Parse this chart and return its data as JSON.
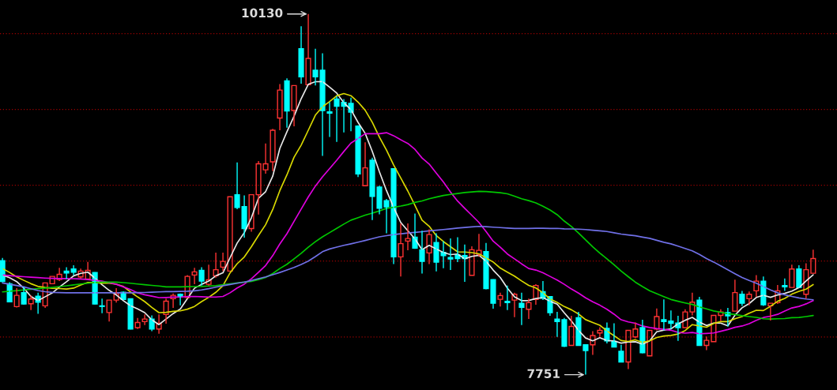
{
  "chart_data": {
    "type": "candlestick",
    "categories": [
      null,
      null,
      null,
      null,
      null,
      null,
      null,
      null,
      null,
      null,
      null,
      null,
      null,
      null,
      null,
      null,
      null,
      null,
      null,
      null,
      null,
      null,
      null,
      null,
      null,
      null,
      null,
      null,
      null,
      null,
      null,
      null,
      null,
      null,
      null,
      null,
      null,
      null,
      null,
      null,
      null,
      null,
      null,
      null,
      null,
      null,
      null,
      null,
      null,
      null,
      null,
      null,
      null,
      null,
      null,
      null,
      null,
      null,
      null,
      null,
      null,
      null,
      null,
      null,
      null,
      null,
      null,
      null,
      null,
      null,
      null,
      null,
      null,
      null,
      null,
      null,
      null,
      null,
      null,
      null,
      null,
      null,
      null,
      null,
      null,
      null,
      null,
      null,
      null,
      null,
      null,
      null,
      null,
      null,
      null,
      null,
      null,
      null,
      null,
      null,
      null,
      null,
      null,
      null,
      null,
      null,
      null,
      null,
      null,
      null,
      null,
      null,
      null,
      null,
      null
    ],
    "ohlc": [
      [
        8503,
        8521,
        8360,
        8365
      ],
      [
        8351,
        8361,
        8228,
        8231
      ],
      [
        8200,
        8321,
        8194,
        8274
      ],
      [
        8292,
        8330,
        8214,
        8217
      ],
      [
        8219,
        8274,
        8177,
        8250
      ],
      [
        8269,
        8292,
        8153,
        8229
      ],
      [
        8205,
        8356,
        8191,
        8356
      ],
      [
        8351,
        8399,
        8351,
        8399
      ],
      [
        8378,
        8455,
        8368,
        8413
      ],
      [
        8434,
        8460,
        8382,
        8422
      ],
      [
        8448,
        8472,
        8408,
        8427
      ],
      [
        8396,
        8451,
        8385,
        8434
      ],
      [
        8382,
        8495,
        8382,
        8439
      ],
      [
        8425,
        8427,
        8215,
        8217
      ],
      [
        8205,
        8252,
        8156,
        8201
      ],
      [
        8161,
        8243,
        8101,
        8243
      ],
      [
        8243,
        8321,
        8226,
        8286
      ],
      [
        8295,
        8299,
        8243,
        8247
      ],
      [
        8252,
        8254,
        8050,
        8052
      ],
      [
        8061,
        8125,
        8052,
        8095
      ],
      [
        8101,
        8148,
        8078,
        8118
      ],
      [
        8118,
        8142,
        8038,
        8052
      ],
      [
        8052,
        8148,
        8021,
        8090
      ],
      [
        8148,
        8252,
        8087,
        8236
      ],
      [
        8252,
        8286,
        8191,
        8274
      ],
      [
        8281,
        8286,
        8208,
        8267
      ],
      [
        8260,
        8408,
        8252,
        8399
      ],
      [
        8408,
        8455,
        8347,
        8429
      ],
      [
        8439,
        8460,
        8339,
        8368
      ],
      [
        8347,
        8477,
        8339,
        8377
      ],
      [
        8403,
        8556,
        8391,
        8443
      ],
      [
        8460,
        8556,
        8434,
        8498
      ],
      [
        8434,
        8924,
        8434,
        8924
      ],
      [
        8938,
        9151,
        8842,
        8854
      ],
      [
        8859,
        8934,
        8655,
        8715
      ],
      [
        8715,
        8938,
        8694,
        8938
      ],
      [
        8938,
        9160,
        8807,
        9142
      ],
      [
        9102,
        9276,
        9076,
        9142
      ],
      [
        9155,
        9372,
        9094,
        9363
      ],
      [
        9444,
        9667,
        9363,
        9628
      ],
      [
        9689,
        9705,
        9380,
        9490
      ],
      [
        9493,
        9658,
        9389,
        9658
      ],
      [
        9901,
        10049,
        9670,
        9715
      ],
      [
        9663,
        10130,
        9663,
        9837
      ],
      [
        9759,
        9901,
        9658,
        9715
      ],
      [
        9759,
        9870,
        9194,
        9493
      ],
      [
        9484,
        9549,
        9319,
        9476
      ],
      [
        9569,
        9587,
        9286,
        9521
      ],
      [
        9547,
        9569,
        9349,
        9521
      ],
      [
        9540,
        9578,
        9356,
        9483
      ],
      [
        9391,
        9396,
        9054,
        9075
      ],
      [
        8997,
        9283,
        8997,
        9115
      ],
      [
        9165,
        9182,
        8771,
        8927
      ],
      [
        8988,
        8997,
        8809,
        8849
      ],
      [
        8898,
        8910,
        8684,
        8858
      ],
      [
        9109,
        9113,
        8481,
        8528
      ],
      [
        8528,
        8748,
        8398,
        8615
      ],
      [
        8632,
        8748,
        8571,
        8649
      ],
      [
        8658,
        8814,
        8580,
        8585
      ],
      [
        8575,
        8701,
        8418,
        8498
      ],
      [
        8554,
        8710,
        8481,
        8675
      ],
      [
        8623,
        8684,
        8432,
        8493
      ],
      [
        8557,
        8632,
        8453,
        8536
      ],
      [
        8523,
        8649,
        8441,
        8514
      ],
      [
        8540,
        8658,
        8493,
        8516
      ],
      [
        8536,
        8609,
        8363,
        8516
      ],
      [
        8406,
        8597,
        8406,
        8575
      ],
      [
        8545,
        8679,
        8528,
        8571
      ],
      [
        8563,
        8620,
        8314,
        8319
      ],
      [
        8378,
        8380,
        8186,
        8222
      ],
      [
        8248,
        8292,
        8200,
        8273
      ],
      [
        8234,
        8339,
        8177,
        8226
      ],
      [
        8243,
        8292,
        8130,
        8281
      ],
      [
        8221,
        8292,
        8078,
        8195
      ],
      [
        8182,
        8252,
        8118,
        8226
      ],
      [
        8247,
        8347,
        8212,
        8339
      ],
      [
        8299,
        8368,
        8243,
        8255
      ],
      [
        8266,
        8269,
        8139,
        8160
      ],
      [
        8118,
        8165,
        8000,
        8101
      ],
      [
        8113,
        8125,
        7934,
        7939
      ],
      [
        7944,
        8139,
        7944,
        8069
      ],
      [
        8127,
        8165,
        7941,
        7944
      ],
      [
        7948,
        7951,
        7751,
        7910
      ],
      [
        7948,
        8038,
        7882,
        8009
      ],
      [
        8026,
        8064,
        8000,
        8043
      ],
      [
        8056,
        8095,
        7957,
        7974
      ],
      [
        7970,
        8090,
        7931,
        7934
      ],
      [
        7905,
        7948,
        7832,
        7835
      ],
      [
        7835,
        8043,
        7788,
        8043
      ],
      [
        8000,
        8095,
        7991,
        8052
      ],
      [
        8061,
        8113,
        7892,
        7896
      ],
      [
        7875,
        8043,
        7875,
        8043
      ],
      [
        8052,
        8188,
        8043,
        8134
      ],
      [
        8113,
        8247,
        8043,
        8101
      ],
      [
        8104,
        8174,
        8052,
        8090
      ],
      [
        8092,
        8139,
        7974,
        8061
      ],
      [
        8061,
        8182,
        8061,
        8165
      ],
      [
        8165,
        8292,
        8142,
        8229
      ],
      [
        8243,
        8264,
        7941,
        7944
      ],
      [
        7944,
        8003,
        7913,
        7977
      ],
      [
        7969,
        8142,
        7969,
        8142
      ],
      [
        8142,
        8182,
        8104,
        8165
      ],
      [
        8161,
        8191,
        8069,
        8139
      ],
      [
        8170,
        8378,
        8170,
        8292
      ],
      [
        8281,
        8304,
        8205,
        8222
      ],
      [
        8252,
        8299,
        8208,
        8281
      ],
      [
        8304,
        8408,
        8264,
        8368
      ],
      [
        8368,
        8399,
        8205,
        8212
      ],
      [
        8205,
        8222,
        8108,
        8222
      ],
      [
        8226,
        8342,
        8217,
        8304
      ],
      [
        8339,
        8385,
        8304,
        8330
      ],
      [
        8326,
        8477,
        8326,
        8448
      ],
      [
        8448,
        8472,
        8323,
        8326
      ],
      [
        8281,
        8486,
        8252,
        8443
      ],
      [
        8420,
        8576,
        8420,
        8517
      ]
    ],
    "colors": [
      "#00ffff",
      "#00ffff",
      "#ff3333",
      "#00ffff",
      "#ff3333",
      "#00ffff",
      "#ff3333",
      "#ff3333",
      "#ff3333",
      "#00ffff",
      "#00ffff",
      "#ff3333",
      "#ff3333",
      "#00ffff",
      "#00ffff",
      "#ff3333",
      "#ff3333",
      "#00ffff",
      "#00ffff",
      "#ff3333",
      "#ff3333",
      "#00ffff",
      "#ff3333",
      "#ff3333",
      "#ff3333",
      "#00ffff",
      "#ff3333",
      "#ff3333",
      "#00ffff",
      "#ff3333",
      "#ff3333",
      "#ff3333",
      "#ff3333",
      "#00ffff",
      "#00ffff",
      "#ff3333",
      "#ff3333",
      "#ff3333",
      "#ff3333",
      "#ff3333",
      "#00ffff",
      "#ff3333",
      "#00ffff",
      "#ff3333",
      "#00ffff",
      "#00ffff",
      "#00ffff",
      "#00ffff",
      "#00ffff",
      "#00ffff",
      "#00ffff",
      "#ff3333",
      "#00ffff",
      "#00ffff",
      "#00ffff",
      "#00ffff",
      "#ff3333",
      "#ff3333",
      "#00ffff",
      "#00ffff",
      "#ff3333",
      "#00ffff",
      "#00ffff",
      "#00ffff",
      "#00ffff",
      "#00ffff",
      "#ff3333",
      "#ff3333",
      "#00ffff",
      "#00ffff",
      "#ff3333",
      "#00ffff",
      "#ff3333",
      "#00ffff",
      "#ff3333",
      "#ff3333",
      "#00ffff",
      "#00ffff",
      "#00ffff",
      "#00ffff",
      "#ff3333",
      "#00ffff",
      "#00ffff",
      "#ff3333",
      "#ff3333",
      "#00ffff",
      "#00ffff",
      "#00ffff",
      "#ff3333",
      "#ff3333",
      "#00ffff",
      "#ff3333",
      "#ff3333",
      "#00ffff",
      "#00ffff",
      "#00ffff",
      "#ff3333",
      "#ff3333",
      "#00ffff",
      "#ff3333",
      "#ff3333",
      "#ff3333",
      "#00ffff",
      "#ff3333",
      "#00ffff",
      "#ff3333",
      "#ff3333",
      "#00ffff",
      "#ff3333",
      "#ff3333",
      "#00ffff",
      "#ff3333",
      "#00ffff",
      "#ff3333",
      "#ff3333"
    ],
    "series": [
      {
        "type": "line",
        "color": "#e8e8e8",
        "values": [
          8408,
          8391,
          8365,
          8321,
          8267,
          8240,
          8265,
          8290,
          8329,
          8364,
          8403,
          8419,
          8427,
          8388,
          8344,
          8307,
          8277,
          8239,
          8206,
          8185,
          8160,
          8113,
          8081,
          8118,
          8154,
          8184,
          8253,
          8321,
          8347,
          8368,
          8403,
          8423,
          8522,
          8619,
          8687,
          8786,
          8915,
          8958,
          9060,
          9243,
          9353,
          9456,
          9571,
          9666,
          9683,
          9684,
          9647,
          9608,
          9545,
          9499,
          9415,
          9343,
          9224,
          9090,
          8965,
          8855,
          8755,
          8700,
          8647,
          8575,
          8604,
          8580,
          8557,
          8543,
          8547,
          8515,
          8531,
          8538,
          8499,
          8441,
          8392,
          8322,
          8264,
          8239,
          8240,
          8253,
          8259,
          8235,
          8216,
          8159,
          8105,
          8043,
          7993,
          7974,
          7995,
          7976,
          7974,
          7959,
          7966,
          7968,
          7952,
          7974,
          8034,
          8045,
          8053,
          8086,
          8110,
          8129,
          8098,
          8075,
          8091,
          8091,
          8073,
          8143,
          8192,
          8220,
          8260,
          8275,
          8261,
          8277,
          8287,
          8302,
          8325,
          8369,
          8410
        ]
      },
      {
        "type": "line",
        "color": "#d8d800",
        "values": [
          8451,
          8425,
          8396,
          8373,
          8351,
          8333,
          8326,
          8321,
          8319,
          8316,
          8322,
          8342,
          8359,
          8359,
          8354,
          8355,
          8348,
          8333,
          8297,
          8264,
          8233,
          8195,
          8160,
          8162,
          8169,
          8172,
          8183,
          8201,
          8233,
          8261,
          8294,
          8338,
          8422,
          8483,
          8527,
          8595,
          8669,
          8740,
          8840,
          8965,
          9069,
          9185,
          9265,
          9363,
          9463,
          9518,
          9552,
          9590,
          9605,
          9591,
          9549,
          9495,
          9416,
          9318,
          9232,
          9135,
          9049,
          8962,
          8868,
          8770,
          8730,
          8668,
          8629,
          8595,
          8561,
          8560,
          8556,
          8548,
          8521,
          8494,
          8454,
          8427,
          8401,
          8369,
          8340,
          8323,
          8291,
          8250,
          8228,
          8200,
          8179,
          8151,
          8114,
          8095,
          8077,
          8040,
          8008,
          7976,
          7970,
          7981,
          7964,
          7974,
          7996,
          8006,
          8010,
          8019,
          8042,
          8081,
          8072,
          8064,
          8089,
          8101,
          8101,
          8120,
          8134,
          8156,
          8176,
          8174,
          8202,
          8235,
          8254,
          8282,
          8301,
          8315,
          8345
        ]
      },
      {
        "type": "line",
        "color": "#e000e0",
        "values": [
          8408,
          8404,
          8400,
          8397,
          8394,
          8391,
          8388,
          8386,
          8385,
          8385,
          8384,
          8382,
          8378,
          8373,
          8368,
          8358,
          8347,
          8330,
          8312,
          8290,
          8278,
          8269,
          8259,
          8260,
          8262,
          8263,
          8266,
          8267,
          8265,
          8263,
          8263,
          8267,
          8291,
          8323,
          8348,
          8383,
          8426,
          8471,
          8536,
          8613,
          8681,
          8762,
          8843,
          8923,
          8995,
          9056,
          9110,
          9165,
          9223,
          9278,
          9309,
          9340,
          9340,
          9340,
          9347,
          9327,
          9300,
          9276,
          9237,
          9180,
          9140,
          9081,
          9022,
          8956,
          8896,
          8848,
          8802,
          8755,
          8695,
          8632,
          8592,
          8547,
          8515,
          8482,
          8451,
          8441,
          8423,
          8399,
          8375,
          8347,
          8316,
          8289,
          8258,
          8232,
          8209,
          8182,
          8150,
          8113,
          8099,
          8090,
          8072,
          8062,
          8055,
          8050,
          8044,
          8030,
          8025,
          8029,
          8021,
          8023,
          8026,
          8037,
          8049,
          8063,
          8072,
          8087,
          8109,
          8128,
          8137,
          8149,
          8171,
          8191,
          8201,
          8218,
          8239
        ]
      },
      {
        "type": "line",
        "color": "#00c800",
        "values": [
          8297,
          8301,
          8305,
          8310,
          8314,
          8318,
          8322,
          8327,
          8332,
          8337,
          8343,
          8349,
          8354,
          8359,
          8361,
          8362,
          8361,
          8358,
          8354,
          8349,
          8344,
          8340,
          8336,
          8330,
          8330,
          8330,
          8331,
          8332,
          8333,
          8336,
          8338,
          8345,
          8350,
          8356,
          8361,
          8366,
          8378,
          8392,
          8418,
          8451,
          8479,
          8515,
          8551,
          8592,
          8628,
          8660,
          8688,
          8716,
          8744,
          8770,
          8786,
          8803,
          8816,
          8831,
          8848,
          8855,
          8863,
          8873,
          8887,
          8897,
          8911,
          8922,
          8933,
          8940,
          8946,
          8952,
          8956,
          8960,
          8959,
          8955,
          8951,
          8944,
          8928,
          8911,
          8899,
          8884,
          8862,
          8837,
          8806,
          8764,
          8728,
          8685,
          8640,
          8594,
          8553,
          8515,
          8476,
          8434,
          8397,
          8361,
          8332,
          8305,
          8285,
          8266,
          8247,
          8235,
          8224,
          8214,
          8198,
          8185,
          8171,
          8163,
          8153,
          8148,
          8140,
          8134,
          8129,
          8120,
          8118,
          8120,
          8121,
          8127,
          8128,
          8134,
          8141
        ]
      },
      {
        "type": "line",
        "color": "#7070e8",
        "values": [
          8356,
          8347,
          8339,
          8330,
          8318,
          8306,
          8298,
          8294,
          8292,
          8291,
          8291,
          8291,
          8291,
          8291,
          8291,
          8291,
          8291,
          8291,
          8291,
          8292,
          8293,
          8295,
          8297,
          8299,
          8299,
          8300,
          8301,
          8304,
          8310,
          8318,
          8328,
          8338,
          8346,
          8354,
          8362,
          8372,
          8384,
          8396,
          8410,
          8425,
          8441,
          8458,
          8478,
          8500,
          8530,
          8562,
          8580,
          8592,
          8604,
          8614,
          8625,
          8636,
          8648,
          8660,
          8668,
          8675,
          8680,
          8685,
          8689,
          8694,
          8700,
          8704,
          8708,
          8713,
          8718,
          8722,
          8726,
          8729,
          8727,
          8724,
          8721,
          8718,
          8715,
          8715,
          8715,
          8717,
          8717,
          8715,
          8716,
          8713,
          8712,
          8711,
          8708,
          8704,
          8700,
          8695,
          8687,
          8678,
          8672,
          8667,
          8658,
          8650,
          8637,
          8624,
          8614,
          8599,
          8583,
          8568,
          8544,
          8517,
          8494,
          8469,
          8443,
          8417,
          8392,
          8372,
          8354,
          8332,
          8310,
          8291,
          8278,
          8267,
          8257,
          8250,
          8245
        ]
      }
    ],
    "ref_lines": [
      {
        "axis": "y",
        "value": 10000,
        "color": "#9a0000",
        "line_style": "dotted"
      },
      {
        "axis": "y",
        "value": 9500,
        "color": "#9a0000",
        "line_style": "dotted"
      },
      {
        "axis": "y",
        "value": 9000,
        "color": "#9a0000",
        "line_style": "dotted"
      },
      {
        "axis": "y",
        "value": 8500,
        "color": "#9a0000",
        "line_style": "dotted"
      },
      {
        "axis": "y",
        "value": 8000,
        "color": "#9a0000",
        "line_style": "dotted"
      }
    ],
    "annotations": [
      "10130",
      "7751"
    ]
  }
}
